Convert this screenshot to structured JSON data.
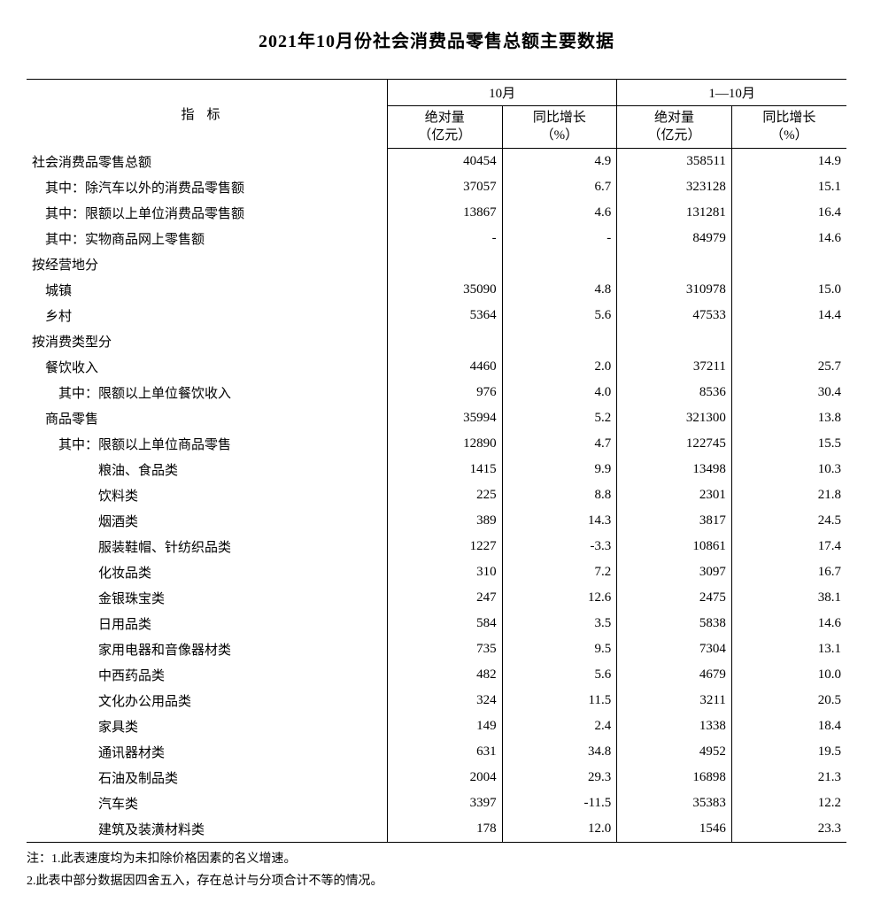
{
  "title": "2021年10月份社会消费品零售总额主要数据",
  "headers": {
    "indicator": "指标",
    "group1": "10月",
    "group2": "1—10月",
    "abs_label_l1": "绝对量",
    "abs_label_l2": "（亿元）",
    "yoy_label_l1": "同比增长",
    "yoy_label_l2": "（%）"
  },
  "table": {
    "columns": [
      "label",
      "oct_abs",
      "oct_yoy",
      "ytd_abs",
      "ytd_yoy"
    ],
    "rows": [
      {
        "indent": 0,
        "label": "社会消费品零售总额",
        "oct_abs": "40454",
        "oct_yoy": "4.9",
        "ytd_abs": "358511",
        "ytd_yoy": "14.9"
      },
      {
        "indent": 1,
        "label": "其中：除汽车以外的消费品零售额",
        "oct_abs": "37057",
        "oct_yoy": "6.7",
        "ytd_abs": "323128",
        "ytd_yoy": "15.1"
      },
      {
        "indent": 1,
        "label": "其中：限额以上单位消费品零售额",
        "oct_abs": "13867",
        "oct_yoy": "4.6",
        "ytd_abs": "131281",
        "ytd_yoy": "16.4"
      },
      {
        "indent": 1,
        "label": "其中：实物商品网上零售额",
        "oct_abs": "-",
        "oct_yoy": "-",
        "ytd_abs": "84979",
        "ytd_yoy": "14.6"
      },
      {
        "indent": 0,
        "label": "按经营地分",
        "oct_abs": "",
        "oct_yoy": "",
        "ytd_abs": "",
        "ytd_yoy": ""
      },
      {
        "indent": 1,
        "label": "城镇",
        "oct_abs": "35090",
        "oct_yoy": "4.8",
        "ytd_abs": "310978",
        "ytd_yoy": "15.0"
      },
      {
        "indent": 1,
        "label": "乡村",
        "oct_abs": "5364",
        "oct_yoy": "5.6",
        "ytd_abs": "47533",
        "ytd_yoy": "14.4"
      },
      {
        "indent": 0,
        "label": "按消费类型分",
        "oct_abs": "",
        "oct_yoy": "",
        "ytd_abs": "",
        "ytd_yoy": ""
      },
      {
        "indent": 1,
        "label": "餐饮收入",
        "oct_abs": "4460",
        "oct_yoy": "2.0",
        "ytd_abs": "37211",
        "ytd_yoy": "25.7"
      },
      {
        "indent": 2,
        "label": "其中：限额以上单位餐饮收入",
        "oct_abs": "976",
        "oct_yoy": "4.0",
        "ytd_abs": "8536",
        "ytd_yoy": "30.4"
      },
      {
        "indent": 1,
        "label": "商品零售",
        "oct_abs": "35994",
        "oct_yoy": "5.2",
        "ytd_abs": "321300",
        "ytd_yoy": "13.8"
      },
      {
        "indent": 2,
        "label": "其中：限额以上单位商品零售",
        "oct_abs": "12890",
        "oct_yoy": "4.7",
        "ytd_abs": "122745",
        "ytd_yoy": "15.5"
      },
      {
        "indent": 3,
        "label": "粮油、食品类",
        "oct_abs": "1415",
        "oct_yoy": "9.9",
        "ytd_abs": "13498",
        "ytd_yoy": "10.3"
      },
      {
        "indent": 3,
        "label": "饮料类",
        "oct_abs": "225",
        "oct_yoy": "8.8",
        "ytd_abs": "2301",
        "ytd_yoy": "21.8"
      },
      {
        "indent": 3,
        "label": "烟酒类",
        "oct_abs": "389",
        "oct_yoy": "14.3",
        "ytd_abs": "3817",
        "ytd_yoy": "24.5"
      },
      {
        "indent": 3,
        "label": "服装鞋帽、针纺织品类",
        "oct_abs": "1227",
        "oct_yoy": "-3.3",
        "ytd_abs": "10861",
        "ytd_yoy": "17.4"
      },
      {
        "indent": 3,
        "label": "化妆品类",
        "oct_abs": "310",
        "oct_yoy": "7.2",
        "ytd_abs": "3097",
        "ytd_yoy": "16.7"
      },
      {
        "indent": 3,
        "label": "金银珠宝类",
        "oct_abs": "247",
        "oct_yoy": "12.6",
        "ytd_abs": "2475",
        "ytd_yoy": "38.1"
      },
      {
        "indent": 3,
        "label": "日用品类",
        "oct_abs": "584",
        "oct_yoy": "3.5",
        "ytd_abs": "5838",
        "ytd_yoy": "14.6"
      },
      {
        "indent": 3,
        "label": "家用电器和音像器材类",
        "oct_abs": "735",
        "oct_yoy": "9.5",
        "ytd_abs": "7304",
        "ytd_yoy": "13.1"
      },
      {
        "indent": 3,
        "label": "中西药品类",
        "oct_abs": "482",
        "oct_yoy": "5.6",
        "ytd_abs": "4679",
        "ytd_yoy": "10.0"
      },
      {
        "indent": 3,
        "label": "文化办公用品类",
        "oct_abs": "324",
        "oct_yoy": "11.5",
        "ytd_abs": "3211",
        "ytd_yoy": "20.5"
      },
      {
        "indent": 3,
        "label": "家具类",
        "oct_abs": "149",
        "oct_yoy": "2.4",
        "ytd_abs": "1338",
        "ytd_yoy": "18.4"
      },
      {
        "indent": 3,
        "label": "通讯器材类",
        "oct_abs": "631",
        "oct_yoy": "34.8",
        "ytd_abs": "4952",
        "ytd_yoy": "19.5"
      },
      {
        "indent": 3,
        "label": "石油及制品类",
        "oct_abs": "2004",
        "oct_yoy": "29.3",
        "ytd_abs": "16898",
        "ytd_yoy": "21.3"
      },
      {
        "indent": 3,
        "label": "汽车类",
        "oct_abs": "3397",
        "oct_yoy": "-11.5",
        "ytd_abs": "35383",
        "ytd_yoy": "12.2"
      },
      {
        "indent": 3,
        "label": "建筑及装潢材料类",
        "oct_abs": "178",
        "oct_yoy": "12.0",
        "ytd_abs": "1546",
        "ytd_yoy": "23.3"
      }
    ],
    "indent_spaces": [
      "",
      "　",
      "　　",
      "　　　　　"
    ]
  },
  "notes": {
    "n1": "注：1.此表速度均为未扣除价格因素的名义增速。",
    "n2": "2.此表中部分数据因四舍五入，存在总计与分项合计不等的情况。"
  },
  "style": {
    "background_color": "#ffffff",
    "text_color": "#000000",
    "border_color": "#000000",
    "title_fontsize": 20,
    "body_fontsize": 15,
    "note_fontsize": 14
  }
}
